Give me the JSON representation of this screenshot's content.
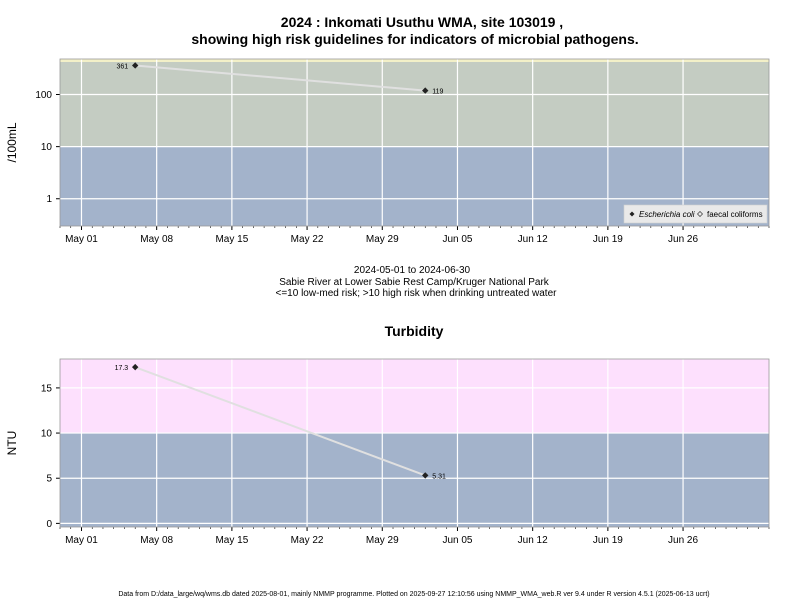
{
  "header": {
    "title_line1": "2024 : Inkomati Usuthu WMA, site 103019 ,",
    "title_line2": "showing high risk guidelines for indicators of microbial pathogens."
  },
  "between": {
    "date_range": "2024-05-01 to 2024-06-30",
    "location": "Sabie River at Lower Sabie Rest Camp/Kruger National Park",
    "risk_note": "<=10 low-med risk; >10 high risk when drinking untreated water"
  },
  "footer": {
    "text": "Data from D:/data_large/wq/wms.db dated 2025-08-01, mainly NMMP programme. Plotted on 2025-09-27 12:10:56 using NMMP_WMA_web.R ver 9.4 under R version 4.5.1 (2025-06-13 ucrt)"
  },
  "colors": {
    "low_band": "#a3b3cb",
    "high_band_top": "#c4ccc2",
    "high_band_bottom": "#fde0fd",
    "top_strip": "#f3f0c8",
    "line": "#e0e0e0",
    "grid": "#ffffff",
    "marker": "#222222"
  },
  "chart_data": [
    {
      "type": "line",
      "title": "",
      "xlabel": "",
      "ylabel": "/100mL",
      "y_scale": "log",
      "ylim": [
        0.3,
        480
      ],
      "xlim": [
        "2024-04-29",
        "2024-07-04"
      ],
      "x_tick_labels": [
        "May 01",
        "May 08",
        "May 15",
        "May 22",
        "May 29",
        "Jun 05",
        "Jun 12",
        "Jun 19",
        "Jun 26"
      ],
      "x_ticks": [
        "2024-05-01",
        "2024-05-08",
        "2024-05-15",
        "2024-05-22",
        "2024-05-29",
        "2024-06-05",
        "2024-06-12",
        "2024-06-19",
        "2024-06-26"
      ],
      "y_ticks": [
        1,
        10,
        100
      ],
      "y_tick_labels": [
        "1",
        "10",
        "100"
      ],
      "guideline": 10,
      "legend": {
        "placement": "bottom-right",
        "entries": [
          {
            "label": "Escherichia coli",
            "italic": true,
            "marker": "diamond-filled"
          },
          {
            "label": "faecal coliforms",
            "italic": false,
            "marker": "diamond-open"
          }
        ]
      },
      "series": [
        {
          "name": "Escherichia coli",
          "x": [
            "2024-05-06",
            "2024-06-02"
          ],
          "y": [
            361,
            119
          ],
          "labels": [
            "361",
            "119"
          ]
        }
      ]
    },
    {
      "type": "line",
      "title": "Turbidity",
      "xlabel": "",
      "ylabel": "NTU",
      "y_scale": "linear",
      "ylim": [
        -0.4,
        18.2
      ],
      "xlim": [
        "2024-04-29",
        "2024-07-04"
      ],
      "x_tick_labels": [
        "May 01",
        "May 08",
        "May 15",
        "May 22",
        "May 29",
        "Jun 05",
        "Jun 12",
        "Jun 19",
        "Jun 26"
      ],
      "x_ticks": [
        "2024-05-01",
        "2024-05-08",
        "2024-05-15",
        "2024-05-22",
        "2024-05-29",
        "2024-06-05",
        "2024-06-12",
        "2024-06-19",
        "2024-06-26"
      ],
      "y_ticks": [
        0,
        5,
        10,
        15
      ],
      "y_tick_labels": [
        "0",
        "5",
        "10",
        "15"
      ],
      "guideline": 10,
      "series": [
        {
          "x": [
            "2024-05-06",
            "2024-06-02"
          ],
          "y": [
            17.3,
            5.31
          ],
          "labels": [
            "17.3",
            "5.31"
          ]
        }
      ]
    }
  ]
}
